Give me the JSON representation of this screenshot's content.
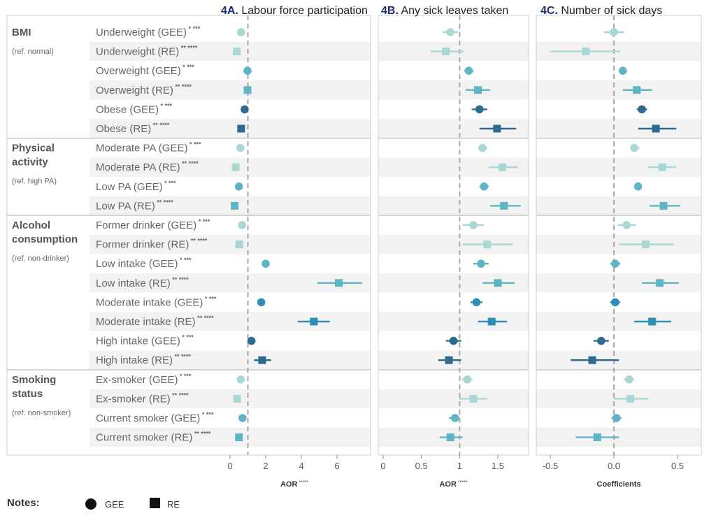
{
  "chart_data": {
    "type": "forest",
    "panels": [
      {
        "id": "4A",
        "title_num": "4A.",
        "title_text": " Labour force participation",
        "xlabel": "AOR",
        "xlabel_sup": "*****",
        "ref": 1,
        "xlim": [
          -1.2,
          7.6
        ],
        "ticks": [
          0,
          2,
          4,
          6
        ],
        "tick_labels": [
          "0",
          "2",
          "4",
          "6"
        ]
      },
      {
        "id": "4B",
        "title_num": "4B.",
        "title_text": " Any sick leaves taken",
        "xlabel": "AOR",
        "xlabel_sup": "*****",
        "ref": 1,
        "xlim": [
          0,
          2.0
        ],
        "ticks": [
          0,
          0.5,
          1,
          1.5
        ],
        "tick_labels": [
          "0",
          "0.5",
          "1",
          "1.5"
        ]
      },
      {
        "id": "4C",
        "title_num": "4C.",
        "title_text": " Number of sick days",
        "xlabel": "Coefficients",
        "xlabel_sup": "",
        "ref": 0,
        "xlim": [
          -0.65,
          0.65
        ],
        "ticks": [
          -0.5,
          0,
          0.5
        ],
        "tick_labels": [
          "-0.5",
          "0.0",
          "0.5"
        ]
      }
    ],
    "groups": [
      {
        "name": [
          "BMI"
        ],
        "ref": "(ref. normal)",
        "rows": [
          0,
          5
        ]
      },
      {
        "name": [
          "Physical",
          "activity"
        ],
        "ref": "(ref. high PA)",
        "rows": [
          6,
          9
        ]
      },
      {
        "name": [
          "Alcohol",
          "consumption"
        ],
        "ref": "(ref. non-drinker)",
        "rows": [
          10,
          17
        ]
      },
      {
        "name": [
          "Smoking",
          "status"
        ],
        "ref": "(ref. non-smoker)",
        "rows": [
          18,
          21
        ]
      }
    ],
    "rows": [
      {
        "label": "Underweight (GEE)",
        "sup": "* ***",
        "model": "GEE",
        "color": "#a9d7d6",
        "a": [
          0.62,
          null,
          null
        ],
        "b": [
          0.88,
          0.78,
          0.98
        ],
        "c": [
          0.0,
          -0.08,
          0.08
        ]
      },
      {
        "label": "Underweight (RE)",
        "sup": "** ****",
        "model": "RE",
        "color": "#a9d7d6",
        "a": [
          0.38,
          null,
          null
        ],
        "b": [
          0.82,
          0.62,
          1.05
        ],
        "c": [
          -0.22,
          -0.5,
          0.05
        ]
      },
      {
        "label": "Overweight (GEE)",
        "sup": "* ***",
        "model": "GEE",
        "color": "#5fb5c3",
        "a": [
          0.98,
          null,
          null
        ],
        "b": [
          1.12,
          1.06,
          1.18
        ],
        "c": [
          0.07,
          0.04,
          0.1
        ]
      },
      {
        "label": "Overweight (RE)",
        "sup": "** ****",
        "model": "RE",
        "color": "#5fb5c3",
        "a": [
          0.98,
          null,
          null
        ],
        "b": [
          1.24,
          1.08,
          1.4
        ],
        "c": [
          0.18,
          0.07,
          0.3
        ]
      },
      {
        "label": "Obese (GEE)",
        "sup": "* ***",
        "model": "GEE",
        "color": "#2c6b8e",
        "a": [
          0.82,
          null,
          null
        ],
        "b": [
          1.26,
          1.16,
          1.36
        ],
        "c": [
          0.22,
          0.18,
          0.26
        ]
      },
      {
        "label": "Obese (RE)",
        "sup": "** ****",
        "model": "RE",
        "color": "#2c6b8e",
        "a": [
          0.62,
          null,
          null
        ],
        "b": [
          1.49,
          1.26,
          1.74
        ],
        "c": [
          0.33,
          0.19,
          0.49
        ]
      },
      {
        "label": "Moderate PA (GEE)",
        "sup": "* ***",
        "model": "GEE",
        "color": "#a9d7d6",
        "a": [
          0.58,
          null,
          null
        ],
        "b": [
          1.3,
          1.24,
          1.36
        ],
        "c": [
          0.16,
          0.13,
          0.2
        ]
      },
      {
        "label": "Moderate PA (RE)",
        "sup": "** ****",
        "model": "RE",
        "color": "#a9d7d6",
        "a": [
          0.32,
          null,
          null
        ],
        "b": [
          1.56,
          1.38,
          1.76
        ],
        "c": [
          0.38,
          0.27,
          0.49
        ]
      },
      {
        "label": "Low PA (GEE)",
        "sup": "* ***",
        "model": "GEE",
        "color": "#5fb5c3",
        "a": [
          0.5,
          null,
          null
        ],
        "b": [
          1.32,
          1.26,
          1.38
        ],
        "c": [
          0.19,
          0.16,
          0.22
        ]
      },
      {
        "label": "Low PA (RE)",
        "sup": "** ****",
        "model": "RE",
        "color": "#5fb5c3",
        "a": [
          0.26,
          null,
          null
        ],
        "b": [
          1.58,
          1.4,
          1.8
        ],
        "c": [
          0.39,
          0.28,
          0.52
        ]
      },
      {
        "label": "Former drinker (GEE)",
        "sup": "* ***",
        "model": "GEE",
        "color": "#a9d7d6",
        "a": [
          0.68,
          null,
          null
        ],
        "b": [
          1.18,
          1.04,
          1.32
        ],
        "c": [
          0.1,
          0.03,
          0.17
        ]
      },
      {
        "label": "Former drinker (RE)",
        "sup": "** ****",
        "model": "RE",
        "color": "#a9d7d6",
        "a": [
          0.52,
          null,
          null
        ],
        "b": [
          1.36,
          1.04,
          1.7
        ],
        "c": [
          0.25,
          0.04,
          0.47
        ]
      },
      {
        "label": "Low intake (GEE)",
        "sup": "* ***",
        "model": "GEE",
        "color": "#5fb5c3",
        "a": [
          2.0,
          null,
          null
        ],
        "b": [
          1.28,
          1.18,
          1.38
        ],
        "c": [
          0.01,
          -0.03,
          0.05
        ]
      },
      {
        "label": "Low intake (RE)",
        "sup": "** ****",
        "model": "RE",
        "color": "#5fb5c3",
        "a": [
          6.1,
          4.9,
          7.4
        ],
        "b": [
          1.5,
          1.3,
          1.72
        ],
        "c": [
          0.36,
          0.22,
          0.51
        ]
      },
      {
        "label": "Moderate intake (GEE)",
        "sup": "* ***",
        "model": "GEE",
        "color": "#2c8fb3",
        "a": [
          1.75,
          null,
          null
        ],
        "b": [
          1.22,
          1.14,
          1.3
        ],
        "c": [
          0.01,
          -0.03,
          0.05
        ]
      },
      {
        "label": "Moderate intake (RE)",
        "sup": "** ****",
        "model": "RE",
        "color": "#2c8fb3",
        "a": [
          4.7,
          3.8,
          5.6
        ],
        "b": [
          1.42,
          1.24,
          1.62
        ],
        "c": [
          0.3,
          0.16,
          0.45
        ]
      },
      {
        "label": "High intake (GEE)",
        "sup": "* ***",
        "model": "GEE",
        "color": "#2c6b8e",
        "a": [
          1.2,
          null,
          null
        ],
        "b": [
          0.92,
          0.82,
          1.02
        ],
        "c": [
          -0.1,
          -0.16,
          -0.04
        ]
      },
      {
        "label": "High intake (RE)",
        "sup": "** ****",
        "model": "RE",
        "color": "#2c6b8e",
        "a": [
          1.8,
          1.35,
          2.3
        ],
        "b": [
          0.86,
          0.72,
          1.02
        ],
        "c": [
          -0.17,
          -0.34,
          0.04
        ]
      },
      {
        "label": "Ex-smoker (GEE)",
        "sup": "* ***",
        "model": "GEE",
        "color": "#a9d7d6",
        "a": [
          0.6,
          null,
          null
        ],
        "b": [
          1.1,
          1.03,
          1.17
        ],
        "c": [
          0.12,
          0.08,
          0.16
        ]
      },
      {
        "label": "Ex-smoker (RE)",
        "sup": "** ****",
        "model": "RE",
        "color": "#a9d7d6",
        "a": [
          0.4,
          null,
          null
        ],
        "b": [
          1.18,
          1.0,
          1.36
        ],
        "c": [
          0.13,
          0.0,
          0.27
        ]
      },
      {
        "label": "Current smoker (GEE)",
        "sup": "* ***",
        "model": "GEE",
        "color": "#5fb5c3",
        "a": [
          0.7,
          null,
          null
        ],
        "b": [
          0.94,
          0.86,
          1.0
        ],
        "c": [
          0.02,
          -0.02,
          0.06
        ]
      },
      {
        "label": "Current smoker (RE)",
        "sup": "** ****",
        "model": "RE",
        "color": "#5fb5c3",
        "a": [
          0.5,
          null,
          null
        ],
        "b": [
          0.88,
          0.74,
          1.04
        ],
        "c": [
          -0.13,
          -0.3,
          0.04
        ]
      }
    ],
    "legend": {
      "title": "Notes:",
      "items": [
        {
          "shape": "circle",
          "label": "GEE"
        },
        {
          "shape": "square",
          "label": "RE"
        }
      ]
    }
  }
}
